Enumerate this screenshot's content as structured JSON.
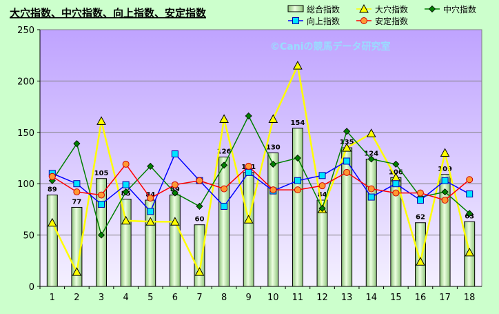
{
  "chart_data": {
    "type": "bar",
    "title": "大穴指数、中穴指数、向上指数、安定指数",
    "watermark": "©Caniの競馬データ研究室",
    "categories": [
      "1",
      "2",
      "3",
      "4",
      "5",
      "6",
      "7",
      "8",
      "9",
      "10",
      "11",
      "12",
      "13",
      "14",
      "15",
      "16",
      "17",
      "18"
    ],
    "ylim": [
      0,
      250
    ],
    "yticks": [
      0,
      50,
      100,
      150,
      200,
      250
    ],
    "grid": true,
    "legend_position": "top-right",
    "series": [
      {
        "name": "総合指数",
        "kind": "bar",
        "color": "#b8e0a8",
        "values": [
          89,
          77,
          105,
          85,
          84,
          89,
          60,
          126,
          111,
          130,
          154,
          84,
          135,
          124,
          106,
          62,
          109,
          63
        ]
      },
      {
        "name": "大穴指数",
        "kind": "line",
        "marker": "triangle",
        "color": "#ffff00",
        "values": [
          62,
          14,
          161,
          64,
          63,
          63,
          14,
          163,
          65,
          163,
          215,
          75,
          135,
          149,
          106,
          24,
          130,
          33
        ]
      },
      {
        "name": "中穴指数",
        "kind": "line",
        "marker": "diamond",
        "color": "#008000",
        "values": [
          103,
          139,
          50,
          92,
          117,
          91,
          78,
          118,
          166,
          119,
          125,
          76,
          151,
          124,
          119,
          87,
          92,
          71
        ]
      },
      {
        "name": "向上指数",
        "kind": "line",
        "marker": "square",
        "color": "#0000ff",
        "markerColor": "#00e5ff",
        "values": [
          110,
          100,
          80,
          99,
          73,
          129,
          103,
          78,
          111,
          93,
          103,
          108,
          122,
          87,
          100,
          84,
          103,
          90
        ]
      },
      {
        "name": "安定指数",
        "kind": "line",
        "marker": "circle",
        "color": "#ff0000",
        "markerColor": "#ff9933",
        "values": [
          107,
          92,
          89,
          119,
          86,
          99,
          103,
          95,
          117,
          94,
          94,
          98,
          111,
          95,
          91,
          91,
          84,
          104
        ]
      }
    ]
  }
}
